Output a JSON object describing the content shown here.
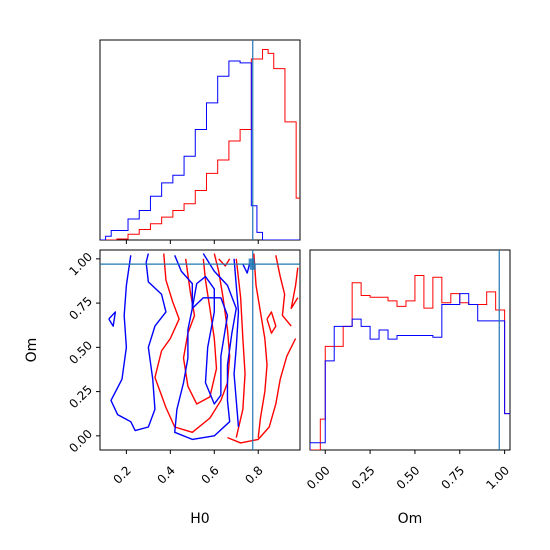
{
  "chart_data": {
    "type": "corner",
    "parameters": [
      "H0",
      "Om"
    ],
    "truth": {
      "H0": 0.775,
      "Om": 0.97
    },
    "colors": {
      "red": "#ff0000",
      "blue": "#0000ff",
      "truth": "#1f77b4"
    },
    "panels": [
      {
        "id": "hist_H0",
        "type": "histogram",
        "xlim": [
          0.08,
          0.99
        ],
        "ylim": [
          0,
          1.05
        ],
        "bin_edges": [
          0.08,
          0.1055,
          0.131,
          0.1565,
          0.182,
          0.2075,
          0.233,
          0.2585,
          0.284,
          0.3095,
          0.335,
          0.3605,
          0.386,
          0.4115,
          0.437,
          0.4625,
          0.488,
          0.5135,
          0.539,
          0.5645,
          0.59,
          0.6155,
          0.641,
          0.6665,
          0.692,
          0.7175,
          0.743,
          0.7685,
          0.794,
          0.8195,
          0.845,
          0.8705,
          0.896,
          0.9215,
          0.947,
          0.9725,
          0.998
        ],
        "series": [
          {
            "name": "",
            "color": "#ff0000",
            "values": [
              0,
              0,
              0,
              0.005,
              0.005,
              0.03,
              0.03,
              0.055,
              0.055,
              0.085,
              0.085,
              0.12,
              0.12,
              0.155,
              0.155,
              0.19,
              0.19,
              0.26,
              0.26,
              0.35,
              0.35,
              0.42,
              0.42,
              0.52,
              0.52,
              0.58,
              0.58,
              0.95,
              0.95,
              1.0,
              0.98,
              0.9,
              0.9,
              0.62,
              0.62,
              0.22
            ]
          },
          {
            "name": "",
            "color": "#0000ff",
            "values": [
              0,
              0.02,
              0.05,
              0.05,
              0.05,
              0.11,
              0.11,
              0.155,
              0.155,
              0.23,
              0.23,
              0.3,
              0.3,
              0.34,
              0.34,
              0.44,
              0.44,
              0.58,
              0.58,
              0.72,
              0.72,
              0.86,
              0.86,
              0.94,
              0.94,
              0.93,
              0.93,
              0.18,
              0.04,
              0,
              0,
              0,
              0,
              0,
              0,
              0
            ]
          }
        ]
      },
      {
        "id": "hist_Om",
        "type": "histogram",
        "xlim": [
          -0.085,
          1.03
        ],
        "ylim": [
          0,
          1.1
        ],
        "bin_edges": [
          -0.085,
          -0.0275,
          0.0,
          0.05,
          0.1,
          0.15,
          0.2,
          0.25,
          0.3,
          0.35,
          0.4,
          0.45,
          0.5,
          0.55,
          0.6,
          0.65,
          0.7,
          0.75,
          0.8,
          0.85,
          0.9,
          0.95,
          1.0,
          1.03
        ],
        "series": [
          {
            "name": "",
            "color": "#ff0000",
            "values": [
              0,
              0.17,
              0.57,
              0.57,
              0.68,
              0.92,
              0.85,
              0.84,
              0.84,
              0.82,
              0.79,
              0.82,
              0.96,
              0.78,
              0.95,
              0.81,
              0.86,
              0.81,
              0.8,
              0.8,
              0.87,
              0.77,
              0.2
            ]
          },
          {
            "name": "",
            "color": "#0000ff",
            "values": [
              0.04,
              0.04,
              0.49,
              0.68,
              0.68,
              0.72,
              0.68,
              0.61,
              0.66,
              0.61,
              0.63,
              0.63,
              0.63,
              0.63,
              0.62,
              0.8,
              0.8,
              0.86,
              0.8,
              0.71,
              0.71,
              0.71,
              0.2
            ]
          }
        ]
      }
    ],
    "scatter_panel": {
      "xlabel": "H0",
      "ylabel": "Om",
      "xlim": [
        0.08,
        0.99
      ],
      "ylim": [
        -0.08,
        1.05
      ],
      "xticks": [
        "0.2",
        "0.4",
        "0.6",
        "0.8"
      ],
      "xtick_values": [
        0.2,
        0.4,
        0.6,
        0.8
      ],
      "yticks": [
        "0.00",
        "0.25",
        "0.50",
        "0.75",
        "1.00"
      ],
      "ytick_values": [
        0.0,
        0.25,
        0.5,
        0.75,
        1.0
      ],
      "contours": {
        "red": [
          [
            [
              0.37,
              1.03
            ],
            [
              0.38,
              0.88
            ],
            [
              0.41,
              0.76
            ],
            [
              0.44,
              0.66
            ],
            [
              0.4,
              0.55
            ],
            [
              0.36,
              0.48
            ],
            [
              0.33,
              0.33
            ],
            [
              0.38,
              0.16
            ],
            [
              0.42,
              0.05
            ],
            [
              0.5,
              0.02
            ],
            [
              0.58,
              0.1
            ],
            [
              0.63,
              0.2
            ],
            [
              0.66,
              0.3
            ],
            [
              0.67,
              0.45
            ],
            [
              0.66,
              0.6
            ],
            [
              0.64,
              0.78
            ],
            [
              0.62,
              0.93
            ],
            [
              0.6,
              1.03
            ]
          ],
          [
            [
              0.47,
              1.0
            ],
            [
              0.49,
              0.82
            ],
            [
              0.51,
              0.68
            ],
            [
              0.48,
              0.58
            ],
            [
              0.46,
              0.44
            ],
            [
              0.48,
              0.28
            ],
            [
              0.52,
              0.18
            ],
            [
              0.58,
              0.22
            ],
            [
              0.61,
              0.38
            ],
            [
              0.6,
              0.55
            ],
            [
              0.58,
              0.72
            ],
            [
              0.56,
              0.88
            ],
            [
              0.55,
              1.0
            ]
          ],
          [
            [
              0.7,
              1.0
            ],
            [
              0.72,
              0.78
            ],
            [
              0.73,
              0.55
            ],
            [
              0.74,
              0.35
            ],
            [
              0.73,
              0.15
            ],
            [
              0.7,
              -0.01
            ]
          ],
          [
            [
              0.78,
              1.03
            ],
            [
              0.79,
              0.85
            ],
            [
              0.81,
              0.7
            ],
            [
              0.83,
              0.55
            ],
            [
              0.84,
              0.4
            ],
            [
              0.83,
              0.25
            ],
            [
              0.81,
              0.1
            ],
            [
              0.8,
              -0.01
            ]
          ],
          [
            [
              0.88,
              1.02
            ],
            [
              0.9,
              0.9
            ],
            [
              0.92,
              0.8
            ],
            [
              0.91,
              0.68
            ],
            [
              0.95,
              0.62
            ]
          ],
          [
            [
              0.97,
              0.55
            ],
            [
              0.93,
              0.45
            ],
            [
              0.9,
              0.32
            ],
            [
              0.88,
              0.18
            ],
            [
              0.85,
              0.05
            ],
            [
              0.8,
              -0.02
            ],
            [
              0.72,
              -0.04
            ],
            [
              0.66,
              -0.01
            ]
          ],
          [
            [
              0.98,
              0.78
            ],
            [
              0.95,
              0.72
            ],
            [
              0.97,
              0.85
            ],
            [
              0.98,
              0.95
            ]
          ],
          [
            [
              0.84,
              0.66
            ],
            [
              0.86,
              0.58
            ],
            [
              0.88,
              0.62
            ],
            [
              0.86,
              0.7
            ],
            [
              0.84,
              0.66
            ]
          ],
          [
            [
              0.62,
              1.0
            ],
            [
              0.65,
              0.96
            ],
            [
              0.67,
              1.0
            ]
          ]
        ],
        "blue": [
          [
            [
              0.22,
              1.02
            ],
            [
              0.2,
              0.85
            ],
            [
              0.19,
              0.68
            ],
            [
              0.2,
              0.5
            ],
            [
              0.18,
              0.32
            ],
            [
              0.13,
              0.2
            ],
            [
              0.16,
              0.12
            ],
            [
              0.22,
              0.08
            ],
            [
              0.24,
              0.03
            ],
            [
              0.3,
              0.05
            ],
            [
              0.33,
              0.15
            ],
            [
              0.32,
              0.32
            ],
            [
              0.3,
              0.5
            ],
            [
              0.33,
              0.62
            ],
            [
              0.38,
              0.7
            ],
            [
              0.36,
              0.8
            ],
            [
              0.3,
              0.87
            ],
            [
              0.29,
              0.98
            ],
            [
              0.3,
              1.03
            ]
          ],
          [
            [
              0.42,
              1.02
            ],
            [
              0.45,
              0.93
            ],
            [
              0.5,
              0.86
            ],
            [
              0.5,
              0.72
            ],
            [
              0.48,
              0.6
            ],
            [
              0.48,
              0.44
            ],
            [
              0.46,
              0.3
            ],
            [
              0.43,
              0.15
            ],
            [
              0.42,
              0.02
            ],
            [
              0.5,
              -0.02
            ],
            [
              0.6,
              0.0
            ],
            [
              0.67,
              0.08
            ],
            [
              0.66,
              0.2
            ],
            [
              0.66,
              0.4
            ],
            [
              0.68,
              0.58
            ],
            [
              0.7,
              0.72
            ],
            [
              0.66,
              0.85
            ],
            [
              0.6,
              0.93
            ],
            [
              0.55,
              1.03
            ]
          ],
          [
            [
              0.5,
              0.72
            ],
            [
              0.52,
              0.86
            ],
            [
              0.56,
              0.9
            ],
            [
              0.6,
              0.83
            ],
            [
              0.6,
              0.7
            ],
            [
              0.57,
              0.5
            ],
            [
              0.56,
              0.3
            ],
            [
              0.6,
              0.18
            ],
            [
              0.63,
              0.23
            ],
            [
              0.63,
              0.45
            ],
            [
              0.66,
              0.68
            ],
            [
              0.63,
              0.78
            ],
            [
              0.55,
              0.78
            ],
            [
              0.5,
              0.72
            ]
          ],
          [
            [
              0.69,
              1.0
            ],
            [
              0.7,
              0.85
            ],
            [
              0.71,
              0.7
            ],
            [
              0.7,
              0.5
            ],
            [
              0.69,
              0.35
            ],
            [
              0.7,
              0.2
            ],
            [
              0.71,
              0.05
            ]
          ],
          [
            [
              0.73,
              0.97
            ],
            [
              0.75,
              0.92
            ],
            [
              0.76,
              0.97
            ]
          ],
          [
            [
              0.12,
              0.66
            ],
            [
              0.14,
              0.62
            ],
            [
              0.15,
              0.7
            ],
            [
              0.12,
              0.66
            ]
          ]
        ]
      },
      "scatter_points": [
        [
          0.77,
          0.985
        ],
        [
          0.775,
          0.955
        ]
      ]
    },
    "hist_Om_panel": {
      "xlabel": "Om",
      "xticks": [
        "0.00",
        "0.25",
        "0.50",
        "0.75",
        "1.00"
      ],
      "xtick_values": [
        0.0,
        0.25,
        0.5,
        0.75,
        1.0
      ]
    },
    "hist_H0_panel": {
      "xtick_values": [
        0.2,
        0.4,
        0.6,
        0.8
      ]
    }
  }
}
